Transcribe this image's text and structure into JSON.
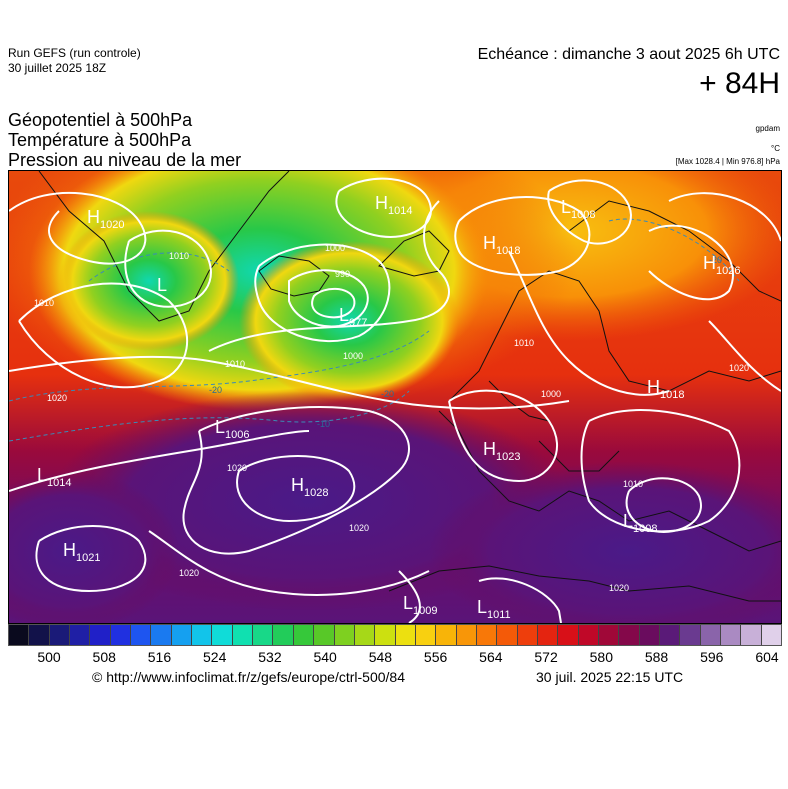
{
  "header": {
    "run_label": "Run GEFS (run controle)",
    "run_date": "30 juillet 2025 18Z",
    "valid_time": "Echéance : dimanche 3 aout 2025 6h UTC",
    "lead_time": "+ 84H"
  },
  "titles": {
    "line1": "Géopotentiel à 500hPa",
    "line2": "Température à 500hPa",
    "line3": "Pression au niveau de la mer"
  },
  "units": {
    "geopotential": "gpdam",
    "temperature": "°C",
    "max_min": "[Max 1028.4 | Min 976.8] hPa"
  },
  "pressure_centers": [
    {
      "type": "H",
      "value": "1020"
    },
    {
      "type": "L",
      "value": ""
    },
    {
      "type": "H",
      "value": "1014"
    },
    {
      "type": "L",
      "value": "1008"
    },
    {
      "type": "H",
      "value": "1018"
    },
    {
      "type": "H",
      "value": "1026"
    },
    {
      "type": "L",
      "value": "977"
    },
    {
      "type": "H",
      "value": "1018"
    },
    {
      "type": "L",
      "value": "1006"
    },
    {
      "type": "H",
      "value": "1023"
    },
    {
      "type": "L",
      "value": "1014"
    },
    {
      "type": "H",
      "value": "1028"
    },
    {
      "type": "L",
      "value": "1008"
    },
    {
      "type": "H",
      "value": "1021"
    },
    {
      "type": "L",
      "value": "1009"
    },
    {
      "type": "L",
      "value": "1011"
    }
  ],
  "isobar_labels": [
    "1010",
    "1000",
    "990",
    "1000",
    "1010",
    "1020",
    "1020",
    "1020",
    "1020",
    "1010",
    "1020",
    "1010",
    "1020",
    "1000",
    "1010"
  ],
  "isotherm_labels": [
    "-20",
    "-20",
    "-10",
    "-20"
  ],
  "colorbar": {
    "colors": [
      "#0a0a1e",
      "#12124a",
      "#1a1a78",
      "#1f1fa5",
      "#2020c8",
      "#2030e0",
      "#1e55f0",
      "#1a7af0",
      "#15a0f0",
      "#12c4ea",
      "#10dcd8",
      "#10e0b0",
      "#18d888",
      "#22cc5a",
      "#36c83a",
      "#58c828",
      "#7ed020",
      "#a6d818",
      "#cce010",
      "#ece010",
      "#f8d010",
      "#f8b408",
      "#f89608",
      "#f87808",
      "#f45a08",
      "#ee3e0c",
      "#e42410",
      "#d81018",
      "#c00828",
      "#a00838",
      "#84084a",
      "#6a0c5e",
      "#5a1a78",
      "#6a3a90",
      "#8a64aa",
      "#aa8ac2",
      "#c8b0d8",
      "#e0d0ea"
    ],
    "ticks": [
      "500",
      "508",
      "516",
      "524",
      "532",
      "540",
      "548",
      "556",
      "564",
      "572",
      "580",
      "588",
      "596",
      "604"
    ]
  },
  "footer": {
    "source": "© http://www.infoclimat.fr/z/gefs/europe/ctrl-500/84",
    "generated": "30 juil. 2025 22:15 UTC"
  }
}
